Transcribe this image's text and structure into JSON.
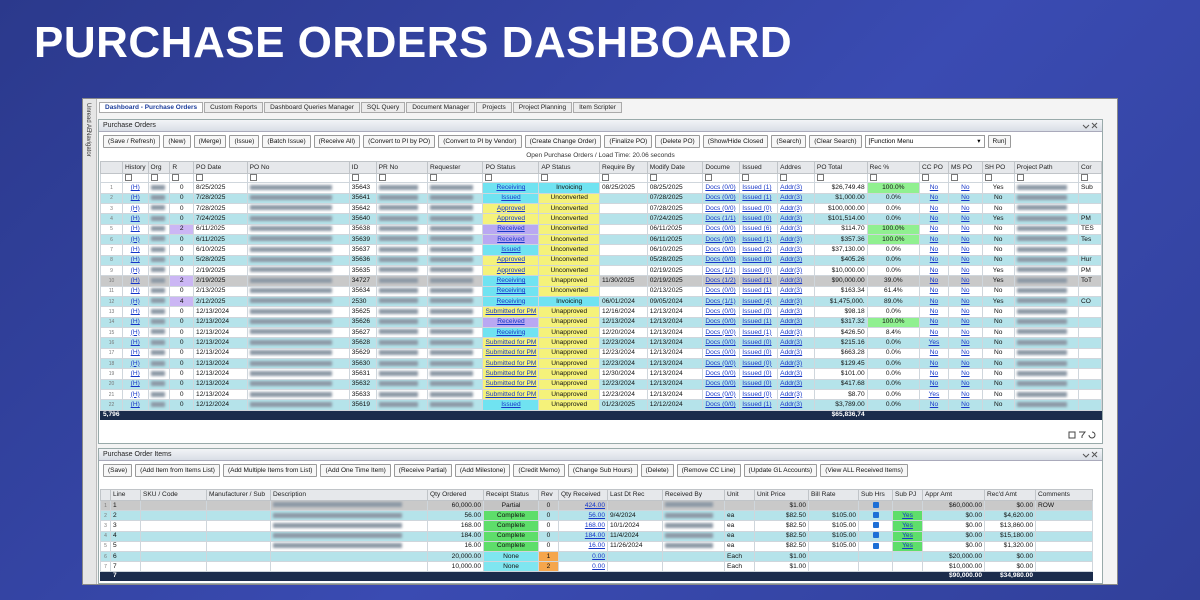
{
  "header": {
    "title": "PURCHASE ORDERS DASHBOARD"
  },
  "side_tabs": [
    "Unread AE",
    "Navigator"
  ],
  "tabs": [
    "Dashboard - Purchase Orders",
    "Custom Reports",
    "Dashboard Queries Manager",
    "SQL Query",
    "Document Manager",
    "Projects",
    "Project Planning",
    "Item Scripter"
  ],
  "po_panel": {
    "title": "Purchase Orders",
    "buttons": [
      "(Save / Refresh)",
      "(New)",
      "(Merge)",
      "(Issue)",
      "(Batch Issue)",
      "(Receive All)",
      "(Convert to PI by PO)",
      "(Convert to PI by Vendor)",
      "(Create Change Order)",
      "(Finalize PO)",
      "(Delete PO)",
      "(Show/Hide Closed",
      "(Search)",
      "(Clear Search)"
    ],
    "function_menu": "[Function Menu",
    "run": "Run]",
    "status": "Open Purchase Orders / Load Time: 20.06 seconds"
  },
  "po_table": {
    "columns": [
      null,
      "History",
      "Org",
      "R",
      "PO Date",
      "PO No",
      "ID",
      "PR No",
      "Requester",
      "PO Status",
      "AP Status",
      "Require By",
      "Modify Date",
      "Docume",
      "Issued",
      "Addres",
      "PO Total",
      "Rec %",
      "CC PO",
      "MS PO",
      "SH PO",
      "Project Path",
      "Cor"
    ],
    "rows": [
      [
        "1",
        "(H)",
        null,
        "0",
        "8/25/2025",
        null,
        "35643",
        null,
        null,
        {
          "text": "Receiving",
          "color": "#70e3f1"
        },
        {
          "text": "Invoicing",
          "color": "#70e3f1"
        },
        "08/25/2025",
        "08/25/2025",
        "Docs (0/0)",
        "Issued (1)",
        "Addr(3)",
        "$26,749.48",
        {
          "text": "100.0%",
          "color": "#90f090"
        },
        "No",
        "No",
        "Yes",
        null,
        "Sub"
      ],
      [
        "2",
        "(H)",
        null,
        "0",
        "7/28/2025",
        null,
        "35641",
        null,
        null,
        {
          "text": "Issued",
          "color": "#70e3f1"
        },
        {
          "text": "Unconverted",
          "color": "#f5f27a"
        },
        null,
        "07/28/2025",
        "Docs (0/0)",
        "Issued (1)",
        "Addr(3)",
        "$1,000.00",
        "0.0%",
        "No",
        "No",
        "No",
        null,
        null
      ],
      [
        "3",
        "(H)",
        null,
        "0",
        "7/28/2025",
        null,
        "35642",
        null,
        null,
        {
          "text": "Approved",
          "color": "#f5f27a"
        },
        {
          "text": "Unconverted",
          "color": "#f5f27a"
        },
        null,
        "07/28/2025",
        "Docs (0/0)",
        "Issued (0)",
        "Addr(3)",
        "$100,000.00",
        "0.0%",
        "No",
        "No",
        "No",
        null,
        null
      ],
      [
        "4",
        "(H)",
        null,
        "0",
        "7/24/2025",
        null,
        "35640",
        null,
        null,
        {
          "text": "Approved",
          "color": "#f5f27a"
        },
        {
          "text": "Unconverted",
          "color": "#f5f27a"
        },
        null,
        "07/24/2025",
        "Docs (1/1)",
        "Issued (0)",
        "Addr(3)",
        "$101,514.00",
        "0.0%",
        "No",
        "No",
        "Yes",
        null,
        "PM"
      ],
      [
        "5",
        "(H)",
        null,
        {
          "text": "2",
          "color": "#cbb6f4"
        },
        "6/11/2025",
        null,
        "35638",
        null,
        null,
        {
          "text": "Received",
          "color": "#b9a8f2"
        },
        {
          "text": "Unconverted",
          "color": "#f5f27a"
        },
        null,
        "06/11/2025",
        "Docs (0/0)",
        "Issued (6)",
        "Addr(3)",
        "$114.70",
        {
          "text": "100.0%",
          "color": "#90f090"
        },
        "No",
        "No",
        "No",
        null,
        "TES"
      ],
      [
        "6",
        "(H)",
        null,
        "0",
        "6/11/2025",
        null,
        "35639",
        null,
        null,
        {
          "text": "Received",
          "color": "#b9a8f2"
        },
        {
          "text": "Unconverted",
          "color": "#f5f27a"
        },
        null,
        "06/11/2025",
        "Docs (0/0)",
        "Issued (1)",
        "Addr(3)",
        "$357.36",
        {
          "text": "100.0%",
          "color": "#90f090"
        },
        "No",
        "No",
        "No",
        null,
        "Tes"
      ],
      [
        "7",
        "(H)",
        null,
        "0",
        "6/10/2025",
        null,
        "35637",
        null,
        null,
        {
          "text": "Issued",
          "color": "#70e3f1"
        },
        {
          "text": "Unconverted",
          "color": "#f5f27a"
        },
        null,
        "06/10/2025",
        "Docs (0/0)",
        "Issued (2)",
        "Addr(3)",
        "$37,130.00",
        "0.0%",
        "No",
        "No",
        "No",
        null,
        null
      ],
      [
        "8",
        "(H)",
        null,
        "0",
        "5/28/2025",
        null,
        "35636",
        null,
        null,
        {
          "text": "Approved",
          "color": "#f5f27a"
        },
        {
          "text": "Unconverted",
          "color": "#f5f27a"
        },
        null,
        "05/28/2025",
        "Docs (0/0)",
        "Issued (0)",
        "Addr(3)",
        "$405.26",
        "0.0%",
        "No",
        "No",
        "No",
        null,
        "Hur"
      ],
      [
        "9",
        "(H)",
        null,
        "0",
        "2/19/2025",
        null,
        "35635",
        null,
        null,
        {
          "text": "Approved",
          "color": "#f5f27a"
        },
        {
          "text": "Unconverted",
          "color": "#f5f27a"
        },
        null,
        "02/19/2025",
        "Docs (1/1)",
        "Issued (0)",
        "Addr(3)",
        "$10,000.00",
        "0.0%",
        "No",
        "No",
        "Yes",
        null,
        "PM"
      ],
      [
        "10",
        "(H)",
        null,
        {
          "text": "2",
          "color": "#cbb6f4"
        },
        "2/19/2025",
        null,
        "34727",
        null,
        null,
        {
          "text": "Receiving",
          "color": "#70e3f1"
        },
        {
          "text": "Unapproved",
          "color": "#f5f27a"
        },
        "11/30/2025",
        "02/19/2025",
        "Docs (1/2)",
        "Issued (1)",
        "Addr(3)",
        "$90,000.00",
        "39.0%",
        "No",
        "No",
        "Yes",
        null,
        "ToT"
      ],
      [
        "11",
        "(H)",
        null,
        "0",
        "2/13/2025",
        null,
        "35634",
        null,
        null,
        {
          "text": "Receiving",
          "color": "#70e3f1"
        },
        {
          "text": "Unconverted",
          "color": "#f5f27a"
        },
        null,
        "02/13/2025",
        "Docs (0/0)",
        "Issued (1)",
        "Addr(3)",
        "$163.34",
        "61.4%",
        "No",
        "No",
        "No",
        null,
        null
      ],
      [
        "12",
        "(H)",
        null,
        {
          "text": "4",
          "color": "#cbb6f4"
        },
        "2/12/2025",
        null,
        "2530",
        null,
        null,
        {
          "text": "Receiving",
          "color": "#70e3f1"
        },
        {
          "text": "Invoicing",
          "color": "#70e3f1"
        },
        "06/01/2024",
        "09/05/2024",
        "Docs (1/1)",
        "Issued (4)",
        "Addr(3)",
        "$1,475,000.",
        "89.0%",
        "No",
        "No",
        "Yes",
        null,
        "CO"
      ],
      [
        "13",
        "(H)",
        null,
        "0",
        "12/13/2024",
        null,
        "35625",
        null,
        null,
        {
          "text": "Submitted for PM",
          "color": "#f5f27a"
        },
        {
          "text": "Unapproved",
          "color": "#f5f27a"
        },
        "12/16/2024",
        "12/13/2024",
        "Docs (0/0)",
        "Issued (0)",
        "Addr(3)",
        "$98.18",
        "0.0%",
        "No",
        "No",
        "No",
        null,
        null
      ],
      [
        "14",
        "(H)",
        null,
        "0",
        "12/13/2024",
        null,
        "35626",
        null,
        null,
        {
          "text": "Received",
          "color": "#b9a8f2"
        },
        {
          "text": "Unapproved",
          "color": "#f5f27a"
        },
        "12/13/2024",
        "12/13/2024",
        "Docs (0/0)",
        "Issued (1)",
        "Addr(3)",
        "$317.32",
        {
          "text": "100.0%",
          "color": "#90f090"
        },
        "No",
        "No",
        "No",
        null,
        null
      ],
      [
        "15",
        "(H)",
        null,
        "0",
        "12/13/2024",
        null,
        "35627",
        null,
        null,
        {
          "text": "Receiving",
          "color": "#70e3f1"
        },
        {
          "text": "Unapproved",
          "color": "#f5f27a"
        },
        "12/20/2024",
        "12/13/2024",
        "Docs (0/0)",
        "Issued (1)",
        "Addr(3)",
        "$426.50",
        "8.4%",
        "No",
        "No",
        "No",
        null,
        null
      ],
      [
        "16",
        "(H)",
        null,
        "0",
        "12/13/2024",
        null,
        "35628",
        null,
        null,
        {
          "text": "Submitted for PM",
          "color": "#f5f27a"
        },
        {
          "text": "Unapproved",
          "color": "#f5f27a"
        },
        "12/23/2024",
        "12/13/2024",
        "Docs (0/0)",
        "Issued (0)",
        "Addr(3)",
        "$215.16",
        "0.0%",
        "Yes",
        "No",
        "No",
        null,
        null
      ],
      [
        "17",
        "(H)",
        null,
        "0",
        "12/13/2024",
        null,
        "35629",
        null,
        null,
        {
          "text": "Submitted for PM",
          "color": "#f5f27a"
        },
        {
          "text": "Unapproved",
          "color": "#f5f27a"
        },
        "12/23/2024",
        "12/13/2024",
        "Docs (0/0)",
        "Issued (0)",
        "Addr(3)",
        "$663.28",
        "0.0%",
        "No",
        "No",
        "No",
        null,
        null
      ],
      [
        "18",
        "(H)",
        null,
        "0",
        "12/13/2024",
        null,
        "35630",
        null,
        null,
        {
          "text": "Submitted for PM",
          "color": "#f5f27a"
        },
        {
          "text": "Unapproved",
          "color": "#f5f27a"
        },
        "12/23/2024",
        "12/13/2024",
        "Docs (0/0)",
        "Issued (0)",
        "Addr(3)",
        "$129.45",
        "0.0%",
        "No",
        "No",
        "No",
        null,
        null
      ],
      [
        "19",
        "(H)",
        null,
        "0",
        "12/13/2024",
        null,
        "35631",
        null,
        null,
        {
          "text": "Submitted for PM",
          "color": "#f5f27a"
        },
        {
          "text": "Unapproved",
          "color": "#f5f27a"
        },
        "12/30/2024",
        "12/13/2024",
        "Docs (0/0)",
        "Issued (0)",
        "Addr(3)",
        "$101.00",
        "0.0%",
        "No",
        "No",
        "No",
        null,
        null
      ],
      [
        "20",
        "(H)",
        null,
        "0",
        "12/13/2024",
        null,
        "35632",
        null,
        null,
        {
          "text": "Submitted for PM",
          "color": "#f5f27a"
        },
        {
          "text": "Unapproved",
          "color": "#f5f27a"
        },
        "12/23/2024",
        "12/13/2024",
        "Docs (0/0)",
        "Issued (0)",
        "Addr(3)",
        "$417.68",
        "0.0%",
        "No",
        "No",
        "No",
        null,
        null
      ],
      [
        "21",
        "(H)",
        null,
        "0",
        "12/13/2024",
        null,
        "35633",
        null,
        null,
        {
          "text": "Submitted for PM",
          "color": "#f5f27a"
        },
        {
          "text": "Unapproved",
          "color": "#f5f27a"
        },
        "12/23/2024",
        "12/13/2024",
        "Docs (0/0)",
        "Issued (0)",
        "Addr(3)",
        "$8.70",
        "0.0%",
        "Yes",
        "No",
        "No",
        null,
        null
      ],
      [
        "22",
        "(H)",
        null,
        "0",
        "12/12/2024",
        null,
        "35619",
        null,
        null,
        {
          "text": "Issued",
          "color": "#70e3f1"
        },
        {
          "text": "Unapproved",
          "color": "#f5f27a"
        },
        "01/23/2025",
        "12/12/2024",
        "Docs (0/0)",
        "Issued (1)",
        "Addr(3)",
        "$3,789.00",
        "0.0%",
        "No",
        "No",
        "No",
        null,
        null
      ]
    ],
    "footer": {
      "count": "5,796",
      "total": "$65,836,74"
    }
  },
  "items_panel": {
    "title": "Purchase Order Items",
    "buttons": [
      "(Save)",
      "(Add Item from Items List)",
      "(Add Multiple Items from List)",
      "(Add One Time Item)",
      "(Receive Partial)",
      "(Add Milestone)",
      "(Credit Memo)",
      "(Change Sub Hours)",
      "(Delete)",
      "(Remove CC Line)",
      "(Update GL Accounts)",
      "(View ALL Received Items)"
    ]
  },
  "items_table": {
    "columns": [
      null,
      "Line",
      "SKU / Code",
      "Manufacturer / Sub",
      "Description",
      "Qty Ordered",
      "Receipt Status",
      "Rev",
      "Qty Received",
      "Last Dt Rec",
      "Received By",
      "Unit",
      "Unit Price",
      "Bill Rate",
      "Sub Hrs",
      "Sub PJ",
      "Appr Amt",
      "Rec'd Amt",
      "Comments"
    ],
    "rows": [
      [
        "1",
        "1",
        null,
        null,
        null,
        "60,000.00",
        {
          "text": "Partial",
          "color": "#c4c4c4"
        },
        "0",
        "424.00",
        null,
        null,
        null,
        "$1.00",
        null,
        null,
        null,
        "$60,000.00",
        "$0.00",
        "ROW"
      ],
      [
        "2",
        "2",
        null,
        null,
        null,
        "56.00",
        {
          "text": "Complete",
          "color": "#5ede6a"
        },
        "0",
        "56.00",
        "9/4/2024",
        null,
        "ea",
        "$82.50",
        "$105.00",
        null,
        {
          "text": "Yes",
          "color": "#5ede6a"
        },
        "$0.00",
        "$4,620.00",
        null
      ],
      [
        "3",
        "3",
        null,
        null,
        null,
        "168.00",
        {
          "text": "Complete",
          "color": "#5ede6a"
        },
        "0",
        "168.00",
        "10/1/2024",
        null,
        "ea",
        "$82.50",
        "$105.00",
        null,
        {
          "text": "Yes",
          "color": "#5ede6a"
        },
        "$0.00",
        "$13,860.00",
        null
      ],
      [
        "4",
        "4",
        null,
        null,
        null,
        "184.00",
        {
          "text": "Complete",
          "color": "#5ede6a"
        },
        "0",
        "184.00",
        "11/4/2024",
        null,
        "ea",
        "$82.50",
        "$105.00",
        null,
        {
          "text": "Yes",
          "color": "#5ede6a"
        },
        "$0.00",
        "$15,180.00",
        null
      ],
      [
        "5",
        "5",
        null,
        null,
        null,
        "16.00",
        {
          "text": "Complete",
          "color": "#5ede6a"
        },
        "0",
        "16.00",
        "11/26/2024",
        null,
        "ea",
        "$82.50",
        "$105.00",
        null,
        {
          "text": "Yes",
          "color": "#5ede6a"
        },
        "$0.00",
        "$1,320.00",
        null
      ],
      [
        "6",
        "6",
        null,
        null,
        null,
        "20,000.00",
        {
          "text": "None",
          "color": "#7fe6f0"
        },
        {
          "text": "1",
          "color": "#f5a64c"
        },
        "0.00",
        null,
        null,
        "Each",
        "$1.00",
        null,
        null,
        null,
        "$20,000.00",
        "$0.00",
        null
      ],
      [
        "7",
        "7",
        null,
        null,
        null,
        "10,000.00",
        {
          "text": "None",
          "color": "#7fe6f0"
        },
        {
          "text": "2",
          "color": "#f5a64c"
        },
        "0.00",
        null,
        null,
        "Each",
        "$1.00",
        null,
        null,
        null,
        "$10,000.00",
        "$0.00",
        null
      ]
    ],
    "footer": {
      "count": "7",
      "appr": "$90,000.00",
      "recd": "$34,980.00"
    }
  }
}
